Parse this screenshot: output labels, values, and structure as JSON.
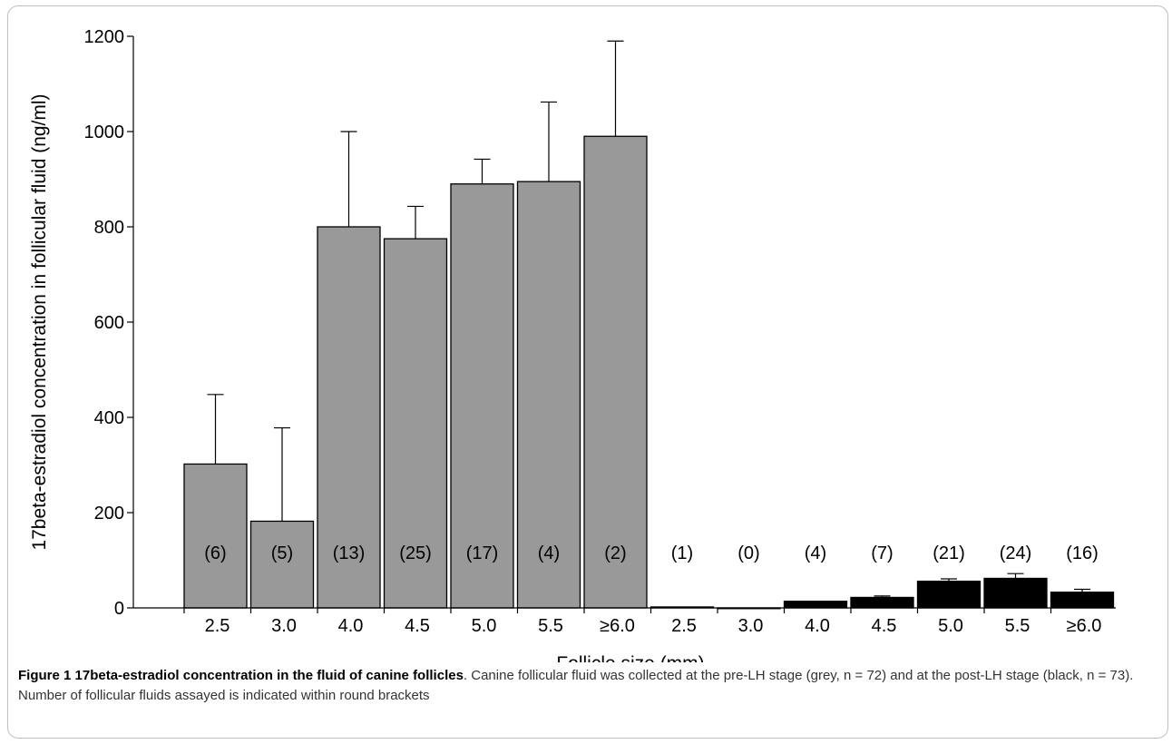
{
  "chart_data": {
    "type": "bar",
    "ylabel": "17beta-estradiol concentration in follicular fluid (ng/ml)",
    "xlabel": "Follicle size (mm)",
    "ylim": [
      0,
      1200
    ],
    "yticks": [
      0,
      200,
      400,
      600,
      800,
      1000,
      1200
    ],
    "categories": [
      "2.5",
      "3.0",
      "4.0",
      "4.5",
      "5.0",
      "5.5",
      "≥6.0",
      "2.5",
      "3.0",
      "4.0",
      "4.5",
      "5.0",
      "5.5",
      "≥6.0"
    ],
    "values": [
      302,
      182,
      800,
      775,
      890,
      895,
      990,
      2,
      0,
      14,
      22,
      56,
      62,
      33
    ],
    "error_upper": [
      448,
      378,
      1000,
      843,
      942,
      1062,
      1190,
      2,
      0,
      14,
      25,
      61,
      72,
      39
    ],
    "n_labels": [
      "(6)",
      "(5)",
      "(13)",
      "(25)",
      "(17)",
      "(4)",
      "(2)",
      "(1)",
      "(0)",
      "(4)",
      "(7)",
      "(21)",
      "(24)",
      "(16)"
    ],
    "group_colors": [
      "#999999",
      "#999999",
      "#999999",
      "#999999",
      "#999999",
      "#999999",
      "#999999",
      "#000000",
      "#000000",
      "#000000",
      "#000000",
      "#000000",
      "#000000",
      "#000000"
    ],
    "grid": false,
    "legend": "none"
  },
  "caption": {
    "bold": "Figure 1 17beta-estradiol concentration in the fluid of canine follicles",
    "text": ". Canine follicular fluid was collected at the pre-LH stage (grey, n = 72) and at the post-LH stage (black, n = 73). Number of follicular fluids assayed is indicated within round brackets"
  }
}
